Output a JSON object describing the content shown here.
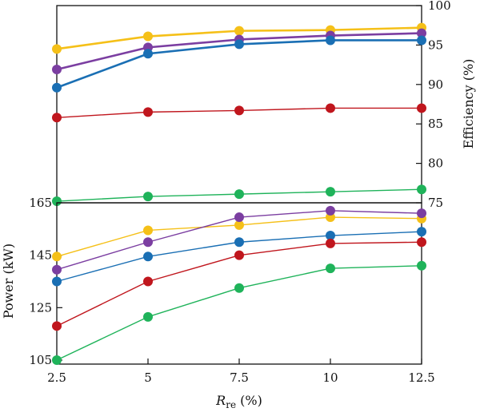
{
  "chart_data": [
    {
      "type": "line",
      "panel": "top",
      "ylabel": "Efficiency (%)",
      "y_axis_side": "right",
      "ylim": [
        75,
        100
      ],
      "yticks": [
        75,
        80,
        85,
        90,
        95,
        100
      ],
      "x": [
        2.5,
        5,
        7.5,
        10,
        12.5
      ],
      "grid": false,
      "series": [
        {
          "color": "#f5c018",
          "stroke": 2.6,
          "values": [
            94.5,
            96.1,
            96.8,
            96.9,
            97.2
          ]
        },
        {
          "color": "#7b3ea1",
          "stroke": 2.6,
          "values": [
            91.9,
            94.7,
            95.7,
            96.2,
            96.5
          ]
        },
        {
          "color": "#1a6fb4",
          "stroke": 2.6,
          "values": [
            89.6,
            93.9,
            95.1,
            95.6,
            95.6
          ]
        },
        {
          "color": "#c0161d",
          "stroke": 1.4,
          "values": [
            85.8,
            86.5,
            86.7,
            87.0,
            87.0
          ]
        },
        {
          "color": "#1fb35a",
          "stroke": 1.4,
          "values": [
            75.2,
            75.8,
            76.1,
            76.4,
            76.7
          ]
        }
      ]
    },
    {
      "type": "line",
      "panel": "bottom",
      "xlabel_main": "R",
      "xlabel_sub": "re",
      "xlabel_unit": " (%)",
      "ylabel": "Power (kW)",
      "y_axis_side": "left",
      "ylim": [
        105,
        165
      ],
      "yticks": [
        105,
        125,
        145,
        165
      ],
      "x": [
        2.5,
        5,
        7.5,
        10,
        12.5
      ],
      "xticks": [
        "2.5",
        "5",
        "7.5",
        "10",
        "12.5"
      ],
      "grid": false,
      "series": [
        {
          "color": "#f5c018",
          "stroke": 1.4,
          "values": [
            144.5,
            154.5,
            156.5,
            159.5,
            159.0
          ]
        },
        {
          "color": "#7b3ea1",
          "stroke": 1.4,
          "values": [
            139.5,
            150.0,
            159.5,
            162.0,
            161.0
          ]
        },
        {
          "color": "#1a6fb4",
          "stroke": 1.4,
          "values": [
            135.0,
            144.5,
            150.0,
            152.5,
            154.0
          ]
        },
        {
          "color": "#c0161d",
          "stroke": 1.4,
          "values": [
            118.0,
            135.0,
            145.0,
            149.5,
            150.0
          ]
        },
        {
          "color": "#1fb35a",
          "stroke": 1.4,
          "values": [
            105.0,
            121.5,
            132.5,
            140.0,
            141.0
          ]
        }
      ]
    }
  ]
}
